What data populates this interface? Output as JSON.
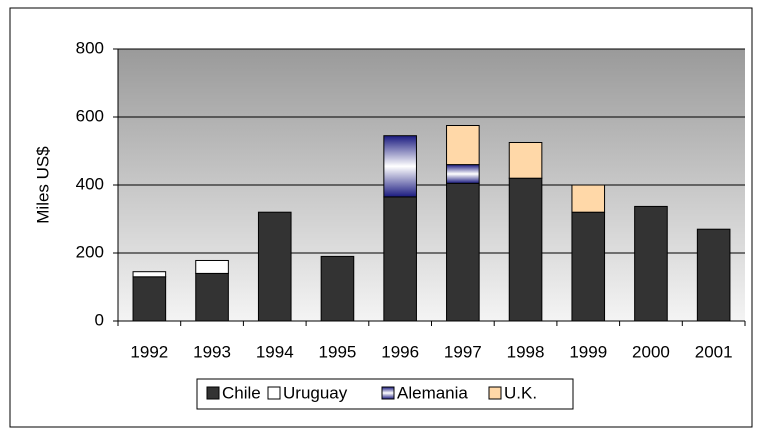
{
  "chart_data": {
    "type": "stacked_bar",
    "ylabel": "Miles US$",
    "categories": [
      "1992",
      "1993",
      "1994",
      "1995",
      "1996",
      "1997",
      "1998",
      "1999",
      "2000",
      "2001"
    ],
    "series": [
      {
        "name": "Chile",
        "color": "#333333",
        "values": [
          130,
          140,
          320,
          190,
          365,
          405,
          420,
          320,
          337,
          270
        ]
      },
      {
        "name": "Uruguay",
        "color": "#ffffff",
        "values": [
          15,
          38,
          null,
          null,
          null,
          null,
          null,
          null,
          null,
          null
        ]
      },
      {
        "name": "Alemania",
        "color": "#1a1a80",
        "values": [
          null,
          null,
          null,
          null,
          180,
          55,
          null,
          null,
          null,
          null
        ]
      },
      {
        "name": "U.K.",
        "color": "#ffd8a8",
        "values": [
          null,
          null,
          null,
          null,
          null,
          115,
          105,
          80,
          null,
          null
        ]
      }
    ],
    "ylim": [
      0,
      800
    ],
    "yticks": [
      0,
      200,
      400,
      600,
      800
    ],
    "grid": true,
    "legend": "bottom"
  }
}
